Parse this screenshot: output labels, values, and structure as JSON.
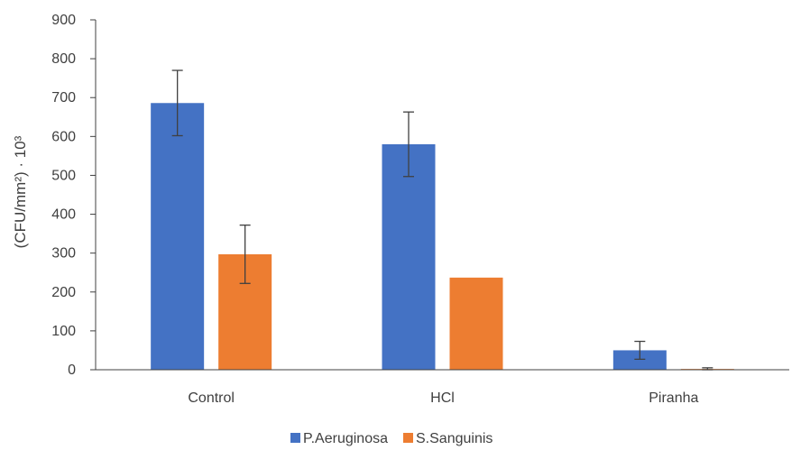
{
  "chart_data": {
    "type": "bar",
    "title": "",
    "xlabel": "",
    "ylabel": "(CFU/mm²) · 10³",
    "ylim": [
      0,
      900
    ],
    "yticks": [
      0,
      100,
      200,
      300,
      400,
      500,
      600,
      700,
      800,
      900
    ],
    "categories": [
      "Control",
      "HCl",
      "Piranha"
    ],
    "series": [
      {
        "name": "P.Aeruginosa",
        "color": "#4472C4",
        "values": [
          686,
          580,
          50
        ],
        "error": [
          84,
          83,
          23
        ]
      },
      {
        "name": "S.Sanguinis",
        "color": "#ED7D31",
        "values": [
          297,
          237,
          2
        ],
        "error": [
          75,
          0,
          3
        ]
      }
    ],
    "grid": false,
    "legend": "bottom",
    "error_bar_color": "#404040"
  }
}
